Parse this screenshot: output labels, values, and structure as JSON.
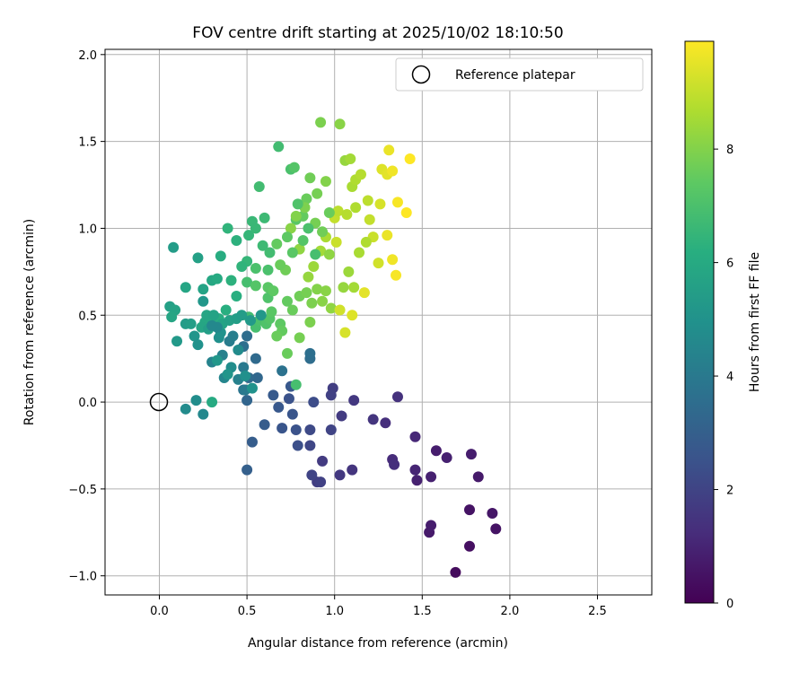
{
  "chart_data": {
    "type": "scatter",
    "title": "FOV centre drift starting at 2025/10/02 18:10:50",
    "xlabel": "Angular distance from reference (arcmin)",
    "ylabel": "Rotation from reference (arcmin)",
    "xlim": [
      -0.31,
      2.81
    ],
    "ylim": [
      -1.11,
      2.03
    ],
    "xticks": [
      0.0,
      0.5,
      1.0,
      1.5,
      2.0,
      2.5
    ],
    "xtick_labels": [
      "0.0",
      "0.5",
      "1.0",
      "1.5",
      "2.0",
      "2.5"
    ],
    "yticks": [
      -1.0,
      -0.5,
      0.0,
      0.5,
      1.0,
      1.5,
      2.0
    ],
    "ytick_labels": [
      "−1.0",
      "−0.5",
      "0.0",
      "0.5",
      "1.0",
      "1.5",
      "2.0"
    ],
    "grid": true,
    "legend": {
      "label": "Reference platepar",
      "position": "top-right"
    },
    "reference_point": {
      "x": 0.0,
      "y": 0.0
    },
    "colorbar": {
      "label": "Hours from first FF file",
      "range": [
        0,
        9.9
      ],
      "ticks": [
        0,
        2,
        4,
        6,
        8
      ],
      "tick_labels": [
        "0",
        "2",
        "4",
        "6",
        "8"
      ],
      "colormap": "viridis"
    },
    "points": [
      [
        1.69,
        -0.98,
        0.3
      ],
      [
        1.92,
        -0.73,
        0.5
      ],
      [
        1.9,
        -0.64,
        0.6
      ],
      [
        1.77,
        -0.83,
        0.4
      ],
      [
        1.77,
        -0.62,
        0.5
      ],
      [
        1.54,
        -0.75,
        0.7
      ],
      [
        1.55,
        -0.71,
        0.8
      ],
      [
        1.82,
        -0.43,
        0.7
      ],
      [
        1.47,
        -0.45,
        0.9
      ],
      [
        1.55,
        -0.43,
        0.9
      ],
      [
        1.58,
        -0.28,
        0.8
      ],
      [
        1.64,
        -0.32,
        0.9
      ],
      [
        1.78,
        -0.3,
        0.8
      ],
      [
        1.46,
        -0.39,
        1.0
      ],
      [
        1.46,
        -0.2,
        1.1
      ],
      [
        1.33,
        -0.33,
        1.2
      ],
      [
        1.34,
        -0.36,
        1.3
      ],
      [
        1.29,
        -0.12,
        1.3
      ],
      [
        1.36,
        0.03,
        1.4
      ],
      [
        1.22,
        -0.1,
        1.5
      ],
      [
        1.11,
        0.01,
        1.6
      ],
      [
        1.1,
        -0.39,
        1.5
      ],
      [
        1.03,
        -0.42,
        1.6
      ],
      [
        1.04,
        -0.08,
        1.7
      ],
      [
        0.99,
        0.08,
        1.8
      ],
      [
        0.98,
        0.04,
        1.9
      ],
      [
        0.98,
        -0.16,
        2.0
      ],
      [
        0.93,
        -0.34,
        1.7
      ],
      [
        0.9,
        -0.46,
        1.8
      ],
      [
        0.92,
        -0.46,
        1.9
      ],
      [
        0.87,
        -0.42,
        2.0
      ],
      [
        0.86,
        -0.25,
        2.1
      ],
      [
        0.86,
        -0.16,
        2.2
      ],
      [
        0.88,
        0.0,
        2.3
      ],
      [
        0.79,
        -0.25,
        2.4
      ],
      [
        0.78,
        -0.16,
        2.5
      ],
      [
        0.74,
        0.02,
        2.5
      ],
      [
        0.76,
        -0.07,
        2.6
      ],
      [
        0.75,
        0.09,
        2.7
      ],
      [
        0.7,
        -0.15,
        2.6
      ],
      [
        0.68,
        -0.03,
        2.7
      ],
      [
        0.65,
        0.04,
        2.8
      ],
      [
        0.6,
        -0.13,
        2.9
      ],
      [
        0.53,
        -0.23,
        2.9
      ],
      [
        0.5,
        -0.39,
        3.0
      ],
      [
        0.5,
        0.01,
        3.2
      ],
      [
        0.56,
        0.14,
        3.3
      ],
      [
        0.51,
        0.14,
        3.4
      ],
      [
        0.5,
        0.38,
        3.5
      ],
      [
        0.55,
        0.25,
        3.4
      ],
      [
        0.48,
        0.32,
        3.6
      ],
      [
        0.86,
        0.25,
        3.5
      ],
      [
        0.86,
        0.28,
        3.6
      ],
      [
        0.7,
        0.18,
        3.7
      ],
      [
        0.48,
        0.07,
        3.8
      ],
      [
        0.49,
        0.07,
        4.0
      ],
      [
        0.48,
        0.2,
        4.0
      ],
      [
        0.4,
        0.35,
        4.1
      ],
      [
        0.42,
        0.38,
        4.2
      ],
      [
        0.45,
        0.13,
        4.3
      ],
      [
        0.36,
        0.27,
        4.3
      ],
      [
        0.3,
        0.23,
        4.4
      ],
      [
        0.37,
        0.14,
        4.5
      ],
      [
        0.25,
        -0.07,
        4.6
      ],
      [
        0.15,
        -0.04,
        4.7
      ],
      [
        0.21,
        0.01,
        4.8
      ],
      [
        0.34,
        0.37,
        4.9
      ],
      [
        0.35,
        0.4,
        5.0
      ],
      [
        0.2,
        0.38,
        5.1
      ],
      [
        0.25,
        0.58,
        5.2
      ],
      [
        0.1,
        0.35,
        5.3
      ],
      [
        0.15,
        0.45,
        5.4
      ],
      [
        0.18,
        0.45,
        5.5
      ],
      [
        0.06,
        0.55,
        5.6
      ],
      [
        0.09,
        0.53,
        5.7
      ],
      [
        0.07,
        0.49,
        5.8
      ],
      [
        0.08,
        0.89,
        5.4
      ],
      [
        0.22,
        0.83,
        5.6
      ],
      [
        0.25,
        0.65,
        5.7
      ],
      [
        0.15,
        0.66,
        5.8
      ],
      [
        0.3,
        0.7,
        5.9
      ],
      [
        0.33,
        0.71,
        6.0
      ],
      [
        0.35,
        0.84,
        6.1
      ],
      [
        0.44,
        0.61,
        6.2
      ],
      [
        0.44,
        0.93,
        6.3
      ],
      [
        0.39,
        1.0,
        6.4
      ],
      [
        0.51,
        0.96,
        6.5
      ],
      [
        0.53,
        1.04,
        6.6
      ],
      [
        0.6,
        1.06,
        6.7
      ],
      [
        0.57,
        1.24,
        6.8
      ],
      [
        0.5,
        0.69,
        6.9
      ],
      [
        0.55,
        0.77,
        7.0
      ],
      [
        0.62,
        0.76,
        7.0
      ],
      [
        0.62,
        0.6,
        7.1
      ],
      [
        0.55,
        0.67,
        7.2
      ],
      [
        0.51,
        0.49,
        6.8
      ],
      [
        0.55,
        0.43,
        6.9
      ],
      [
        0.57,
        0.47,
        7.0
      ],
      [
        0.61,
        0.45,
        7.1
      ],
      [
        0.63,
        0.48,
        7.2
      ],
      [
        0.64,
        0.52,
        7.3
      ],
      [
        0.69,
        0.45,
        7.4
      ],
      [
        0.7,
        0.41,
        7.5
      ],
      [
        0.67,
        0.38,
        7.6
      ],
      [
        0.73,
        0.28,
        7.6
      ],
      [
        0.62,
        0.66,
        7.3
      ],
      [
        0.65,
        0.64,
        7.4
      ],
      [
        0.73,
        0.58,
        7.5
      ],
      [
        0.76,
        0.53,
        7.6
      ],
      [
        0.8,
        0.61,
        7.7
      ],
      [
        0.84,
        0.63,
        7.8
      ],
      [
        0.87,
        0.57,
        7.9
      ],
      [
        0.9,
        0.65,
        8.0
      ],
      [
        0.95,
        0.64,
        8.1
      ],
      [
        0.98,
        0.54,
        8.2
      ],
      [
        0.68,
        1.47,
        6.8
      ],
      [
        0.75,
        1.34,
        7.0
      ],
      [
        0.77,
        1.35,
        7.2
      ],
      [
        0.78,
        1.05,
        7.3
      ],
      [
        0.82,
        1.07,
        7.5
      ],
      [
        0.84,
        1.17,
        7.6
      ],
      [
        0.86,
        1.29,
        7.7
      ],
      [
        0.9,
        1.2,
        7.8
      ],
      [
        0.92,
        1.61,
        7.9
      ],
      [
        0.95,
        1.27,
        8.0
      ],
      [
        1.03,
        1.6,
        8.1
      ],
      [
        1.06,
        1.39,
        8.3
      ],
      [
        1.09,
        1.4,
        8.5
      ],
      [
        1.1,
        1.24,
        8.6
      ],
      [
        1.12,
        1.28,
        8.7
      ],
      [
        1.15,
        1.31,
        8.8
      ],
      [
        1.19,
        1.16,
        8.9
      ],
      [
        1.2,
        1.05,
        9.0
      ],
      [
        1.22,
        0.95,
        9.1
      ],
      [
        1.25,
        0.8,
        9.2
      ],
      [
        1.26,
        1.14,
        9.3
      ],
      [
        1.27,
        1.34,
        9.4
      ],
      [
        1.3,
        1.31,
        9.5
      ],
      [
        1.31,
        1.45,
        9.6
      ],
      [
        1.33,
        1.33,
        9.7
      ],
      [
        1.36,
        1.15,
        9.8
      ],
      [
        1.41,
        1.09,
        9.9
      ],
      [
        1.43,
        1.4,
        9.9
      ],
      [
        1.35,
        0.73,
        9.8
      ],
      [
        1.33,
        0.82,
        9.7
      ],
      [
        1.3,
        0.96,
        9.6
      ],
      [
        1.17,
        0.63,
        9.5
      ],
      [
        1.1,
        0.5,
        9.4
      ],
      [
        1.06,
        0.4,
        9.3
      ],
      [
        1.03,
        0.53,
        9.2
      ],
      [
        1.01,
        0.92,
        9.1
      ],
      [
        1.0,
        1.06,
        9.0
      ],
      [
        1.02,
        1.1,
        8.9
      ],
      [
        1.07,
        1.08,
        8.8
      ],
      [
        1.12,
        1.12,
        8.7
      ],
      [
        0.95,
        0.95,
        8.6
      ],
      [
        0.92,
        0.87,
        8.5
      ],
      [
        0.88,
        0.78,
        8.4
      ],
      [
        0.85,
        0.72,
        8.3
      ],
      [
        0.8,
        0.88,
        8.2
      ],
      [
        0.75,
        1.0,
        8.1
      ],
      [
        0.78,
        1.07,
        8.0
      ],
      [
        0.83,
        1.12,
        7.9
      ],
      [
        0.89,
        1.03,
        7.8
      ],
      [
        0.93,
        0.98,
        7.7
      ],
      [
        0.97,
        1.09,
        7.6
      ],
      [
        1.08,
        0.75,
        8.4
      ],
      [
        1.11,
        0.66,
        8.5
      ],
      [
        1.14,
        0.86,
        8.6
      ],
      [
        1.18,
        0.92,
        8.7
      ],
      [
        1.05,
        0.66,
        8.3
      ],
      [
        0.97,
        0.85,
        8.2
      ],
      [
        0.93,
        0.58,
        8.1
      ],
      [
        0.86,
        0.46,
        7.9
      ],
      [
        0.8,
        0.37,
        7.8
      ],
      [
        0.72,
        0.76,
        7.7
      ],
      [
        0.69,
        0.79,
        7.6
      ],
      [
        0.67,
        0.91,
        7.5
      ],
      [
        0.73,
        0.95,
        7.4
      ],
      [
        0.76,
        0.86,
        7.3
      ],
      [
        0.82,
        0.93,
        7.2
      ],
      [
        0.79,
        1.14,
        7.1
      ],
      [
        0.85,
        1.0,
        7.0
      ],
      [
        0.89,
        0.85,
        6.9
      ],
      [
        0.63,
        0.86,
        6.8
      ],
      [
        0.59,
        0.9,
        6.7
      ],
      [
        0.55,
        1.0,
        6.6
      ],
      [
        0.5,
        0.81,
        6.5
      ],
      [
        0.47,
        0.78,
        6.4
      ],
      [
        0.41,
        0.7,
        6.3
      ],
      [
        0.38,
        0.53,
        6.2
      ],
      [
        0.34,
        0.48,
        6.1
      ],
      [
        0.29,
        0.48,
        6.0
      ],
      [
        0.26,
        0.46,
        5.9
      ],
      [
        0.24,
        0.43,
        5.8
      ],
      [
        0.27,
        0.5,
        5.8
      ],
      [
        0.31,
        0.5,
        5.7
      ],
      [
        0.36,
        0.45,
        5.7
      ],
      [
        0.4,
        0.47,
        5.6
      ],
      [
        0.44,
        0.48,
        5.5
      ],
      [
        0.47,
        0.5,
        5.4
      ],
      [
        0.52,
        0.47,
        5.3
      ],
      [
        0.58,
        0.5,
        5.2
      ],
      [
        0.3,
        0.0,
        6.0
      ],
      [
        0.78,
        0.1,
        6.9
      ],
      [
        0.33,
        0.43,
        4.6
      ],
      [
        0.45,
        0.3,
        4.7
      ],
      [
        0.41,
        0.2,
        4.8
      ],
      [
        0.49,
        0.15,
        4.9
      ],
      [
        0.53,
        0.08,
        5.0
      ],
      [
        0.39,
        0.16,
        5.1
      ],
      [
        0.33,
        0.24,
        5.2
      ],
      [
        0.28,
        0.42,
        5.5
      ],
      [
        0.22,
        0.33,
        5.0
      ],
      [
        0.3,
        0.44,
        4.6
      ]
    ]
  }
}
